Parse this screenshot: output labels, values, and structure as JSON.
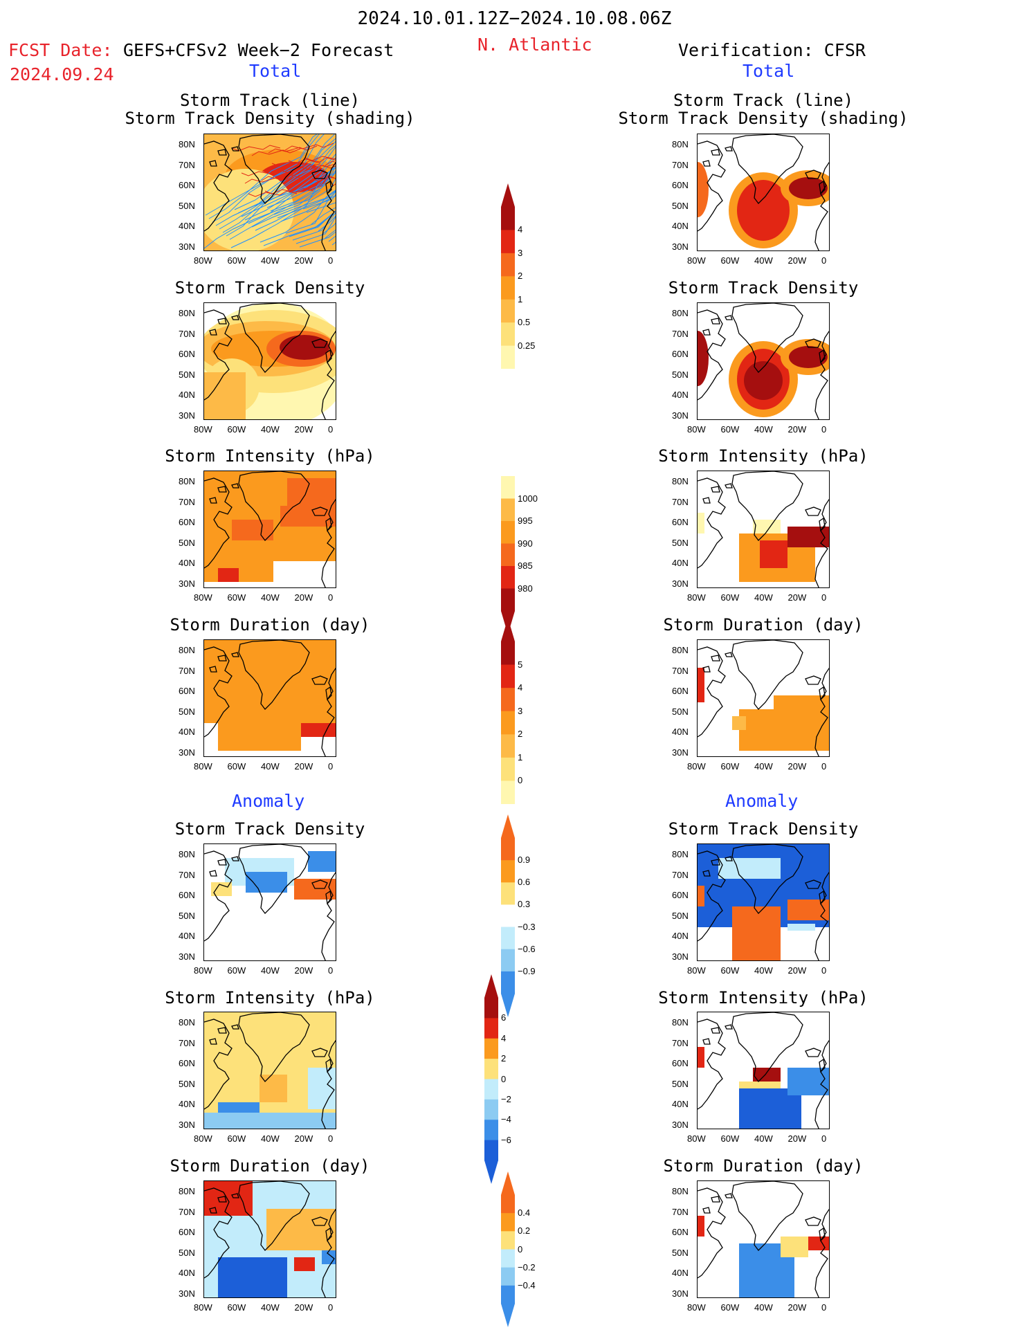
{
  "header": {
    "period": "2024.10.01.12Z−2024.10.08.06Z",
    "fcst_prefix": "FCST Date:",
    "fcst_date": "2024.09.24",
    "left_source": "GEFS+CFSv2 Week−2 Forecast",
    "region": "N. Atlantic",
    "right_source": "Verification: CFSR"
  },
  "sections": {
    "total": "Total",
    "anomaly": "Anomaly"
  },
  "panel_titles": {
    "track_line": "Storm Track (line)",
    "track_shading": "Storm Track Density (shading)",
    "density": "Storm Track Density",
    "intensity": "Storm Intensity (hPa)",
    "duration": "Storm Duration (day)"
  },
  "axes": {
    "lat_ticks": [
      "80N",
      "70N",
      "60N",
      "50N",
      "40N",
      "30N"
    ],
    "lon_ticks": [
      "80W",
      "60W",
      "40W",
      "20W",
      "0"
    ]
  },
  "colorbars": {
    "density_total": [
      "4",
      "3",
      "2",
      "1",
      "0.5",
      "0.25"
    ],
    "intensity_total": [
      "1000",
      "995",
      "990",
      "985",
      "980"
    ],
    "duration_total": [
      "5",
      "4",
      "3",
      "2",
      "1",
      "0"
    ],
    "density_anom": [
      "0.9",
      "0.6",
      "0.3",
      "−0.3",
      "−0.6",
      "−0.9"
    ],
    "intensity_anom": [
      "6",
      "4",
      "2",
      "0",
      "−2",
      "−4",
      "−6"
    ],
    "duration_anom": [
      "0.4",
      "0.2",
      "0",
      "−0.2",
      "−0.4"
    ]
  },
  "colors": {
    "pale_yellow": "#fff7b0",
    "yellow": "#fde17a",
    "light_orange": "#fdba47",
    "orange": "#fb9a1e",
    "dark_orange": "#f5691d",
    "red": "#e22614",
    "dark_red": "#a50f0f",
    "light_blue": "#c2ecfb",
    "mid_blue": "#8ccbf2",
    "blue": "#3b8ee8",
    "dark_blue": "#1c5fd8",
    "track_line": "#1e8fff"
  }
}
